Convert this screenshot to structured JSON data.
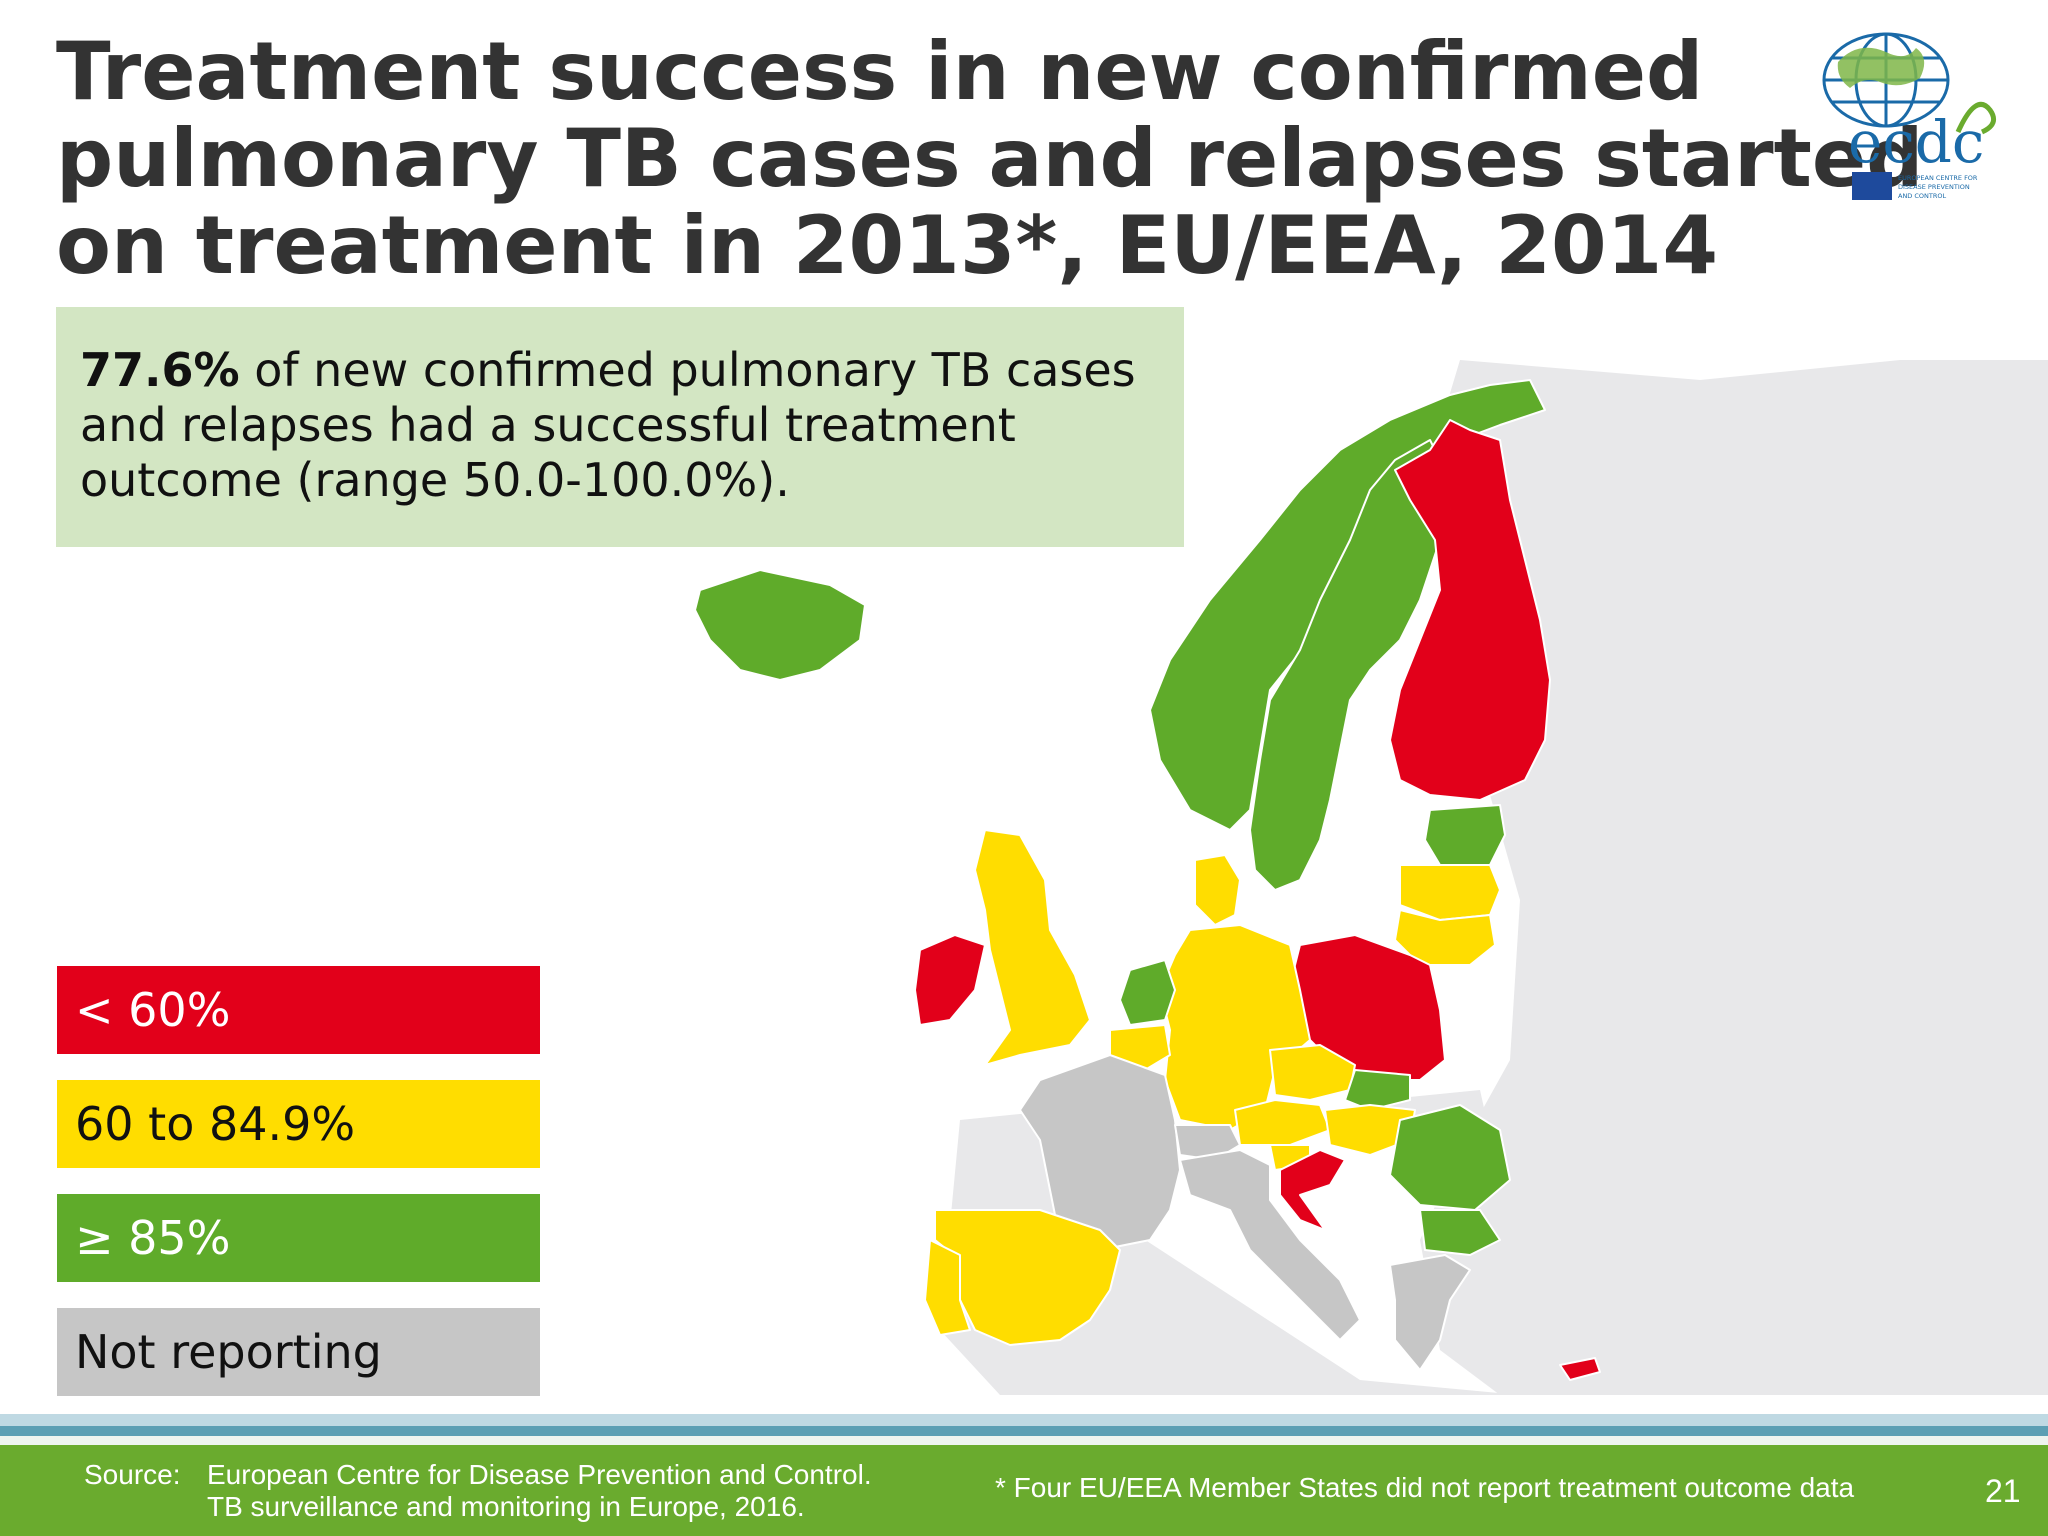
{
  "title": {
    "lines": [
      "Treatment success in new confirmed",
      "pulmonary TB cases and relapses started",
      "on treatment in 2013*, EU/EEA, 2014"
    ]
  },
  "summary": {
    "highlight": "77.6%",
    "line1_rest": " of new confirmed pulmonary TB cases",
    "line2": "and relapses had a successful treatment",
    "line3": "outcome (range 50.0-100.0%)."
  },
  "legend": [
    {
      "label": "< 60%",
      "color": "#e2001a",
      "text_color": "#ffffff"
    },
    {
      "label": "60 to 84.9%",
      "color": "#ffdd00",
      "text_color": "#111111"
    },
    {
      "label": "≥ 85%",
      "color": "#5fab2a",
      "text_color": "#ffffff"
    },
    {
      "label": "Not reporting",
      "color": "#c6c6c6",
      "text_color": "#111111"
    }
  ],
  "map": {
    "categories": {
      "Iceland": "≥ 85%",
      "Norway": "≥ 85%",
      "Sweden": "≥ 85%",
      "Finland": "< 60%",
      "Estonia": "≥ 85%",
      "Latvia": "60 to 84.9%",
      "Lithuania": "60 to 84.9%",
      "Poland": "< 60%",
      "Germany": "60 to 84.9%",
      "Netherlands": "≥ 85%",
      "Belgium": "60 to 84.9%",
      "United Kingdom": "60 to 84.9%",
      "Ireland": "< 60%",
      "France": "Not reporting",
      "Spain": "60 to 84.9%",
      "Portugal": "60 to 84.9%",
      "Italy": "Not reporting",
      "Switzerland": "Not reporting",
      "Austria": "60 to 84.9%",
      "Czech Republic": "60 to 84.9%",
      "Slovakia": "≥ 85%",
      "Hungary": "60 to 84.9%",
      "Slovenia": "60 to 84.9%",
      "Croatia": "< 60%",
      "Romania": "≥ 85%",
      "Bulgaria": "≥ 85%",
      "Greece": "Not reporting",
      "Cyprus": "< 60%",
      "Denmark": "60 to 84.9%"
    }
  },
  "footer": {
    "source_label": "Source:",
    "source_line1": "European Centre for Disease Prevention and Control.",
    "source_line2": "TB surveillance and monitoring in Europe, 2016.",
    "footnote": "* Four EU/EEA Member States did not report treatment outcome data",
    "page_number": "21"
  },
  "logo": {
    "wordmark": "ecdc",
    "caption_line1": "EUROPEAN CENTRE FOR",
    "caption_line2": "DISEASE PREVENTION",
    "caption_line3": "AND CONTROL"
  },
  "colors": {
    "red": "#e2001a",
    "yellow": "#ffdd00",
    "green": "#5fab2a",
    "grey": "#c6c6c6",
    "background_land": "#e8e8ea",
    "footer_green": "#6aab2e",
    "summary_bg": "#d3e6c3"
  }
}
